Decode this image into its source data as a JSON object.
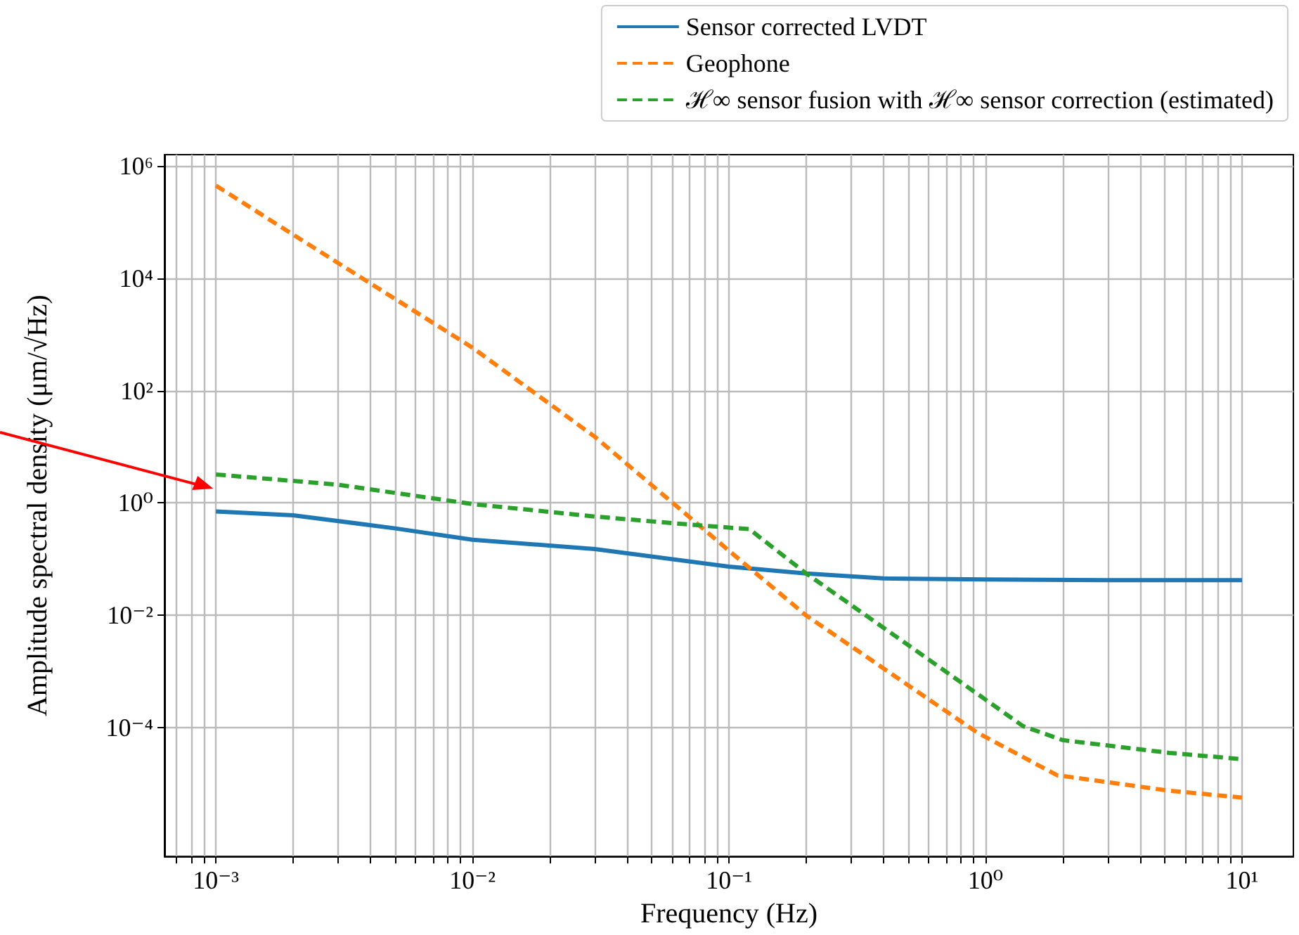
{
  "chart_data": {
    "type": "line",
    "xlabel": "Frequency (Hz)",
    "ylabel": "Amplitude spectral density (μm/√Hz)",
    "log": "xy",
    "grid": true,
    "legend": "top right",
    "xlim": [
      0.00063,
      15.85
    ],
    "ylim": [
      5e-07,
      1600000.0
    ],
    "xticks": [
      {
        "value": 0.0007,
        "label": null
      },
      {
        "value": 0.0008,
        "label": null
      },
      {
        "value": 0.0009,
        "label": null
      },
      {
        "value": 0.001,
        "label": "10⁻³"
      },
      {
        "value": 0.002,
        "label": null
      },
      {
        "value": 0.003,
        "label": null
      },
      {
        "value": 0.004,
        "label": null
      },
      {
        "value": 0.005,
        "label": null
      },
      {
        "value": 0.006,
        "label": null
      },
      {
        "value": 0.007,
        "label": null
      },
      {
        "value": 0.008,
        "label": null
      },
      {
        "value": 0.009,
        "label": null
      },
      {
        "value": 0.01,
        "label": "10⁻²"
      },
      {
        "value": 0.02,
        "label": null
      },
      {
        "value": 0.03,
        "label": null
      },
      {
        "value": 0.04,
        "label": null
      },
      {
        "value": 0.05,
        "label": null
      },
      {
        "value": 0.06,
        "label": null
      },
      {
        "value": 0.07,
        "label": null
      },
      {
        "value": 0.08,
        "label": null
      },
      {
        "value": 0.09,
        "label": null
      },
      {
        "value": 0.1,
        "label": "10⁻¹"
      },
      {
        "value": 0.2,
        "label": null
      },
      {
        "value": 0.3,
        "label": null
      },
      {
        "value": 0.4,
        "label": null
      },
      {
        "value": 0.5,
        "label": null
      },
      {
        "value": 0.6,
        "label": null
      },
      {
        "value": 0.7,
        "label": null
      },
      {
        "value": 0.8,
        "label": null
      },
      {
        "value": 0.9,
        "label": null
      },
      {
        "value": 1,
        "label": "10⁰"
      },
      {
        "value": 2,
        "label": null
      },
      {
        "value": 3,
        "label": null
      },
      {
        "value": 4,
        "label": null
      },
      {
        "value": 5,
        "label": null
      },
      {
        "value": 6,
        "label": null
      },
      {
        "value": 7,
        "label": null
      },
      {
        "value": 8,
        "label": null
      },
      {
        "value": 9,
        "label": null
      },
      {
        "value": 10,
        "label": "10¹"
      }
    ],
    "yticks": [
      {
        "value": 0.0001,
        "label": "10⁻⁴"
      },
      {
        "value": 0.01,
        "label": "10⁻²"
      },
      {
        "value": 1,
        "label": "10⁰"
      },
      {
        "value": 100,
        "label": "10²"
      },
      {
        "value": 10000,
        "label": "10⁴"
      },
      {
        "value": 1000000,
        "label": "10⁶"
      }
    ],
    "series": [
      {
        "name": "Sensor corrected LVDT",
        "color": "#1f77b4",
        "line_style": "solid",
        "x": [
          0.001,
          0.002,
          0.005,
          0.01,
          0.03,
          0.1,
          0.2,
          0.4,
          1,
          3,
          10
        ],
        "values": [
          0.7,
          0.6,
          0.35,
          0.22,
          0.15,
          0.073,
          0.055,
          0.045,
          0.043,
          0.042,
          0.042
        ]
      },
      {
        "name": "Geophone",
        "color": "#ff7f0e",
        "line_style": "dashed",
        "x": [
          0.001,
          0.002,
          0.01,
          0.03,
          0.1,
          0.2,
          0.93,
          1.9,
          5.2,
          10
        ],
        "values": [
          450000,
          60000,
          580,
          15,
          0.14,
          0.0098,
          8e-05,
          1.4e-05,
          7.4e-06,
          5.6e-06
        ]
      },
      {
        "name": "ℋ∞ sensor fusion with ℋ∞ sensor correction (estimated)",
        "color": "#2ca02c",
        "line_style": "dashed",
        "x": [
          0.001,
          0.003,
          0.01,
          0.03,
          0.07,
          0.12,
          0.2,
          0.46,
          1.4,
          2,
          5.2,
          10
        ],
        "values": [
          3.2,
          2.1,
          0.95,
          0.57,
          0.41,
          0.34,
          0.055,
          0.0038,
          0.000105,
          5.9e-05,
          3.5e-05,
          2.7e-05
        ]
      }
    ]
  }
}
